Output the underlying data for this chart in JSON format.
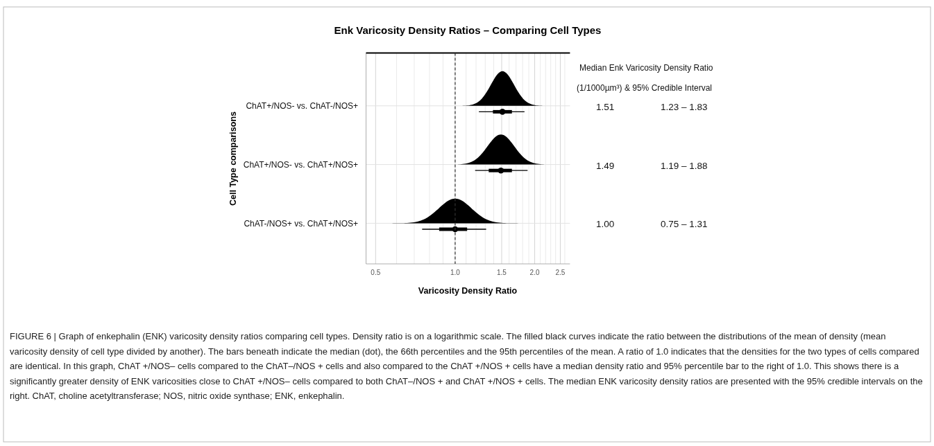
{
  "chart_data": {
    "type": "box",
    "orientation": "horizontal",
    "title": "Enk Varicosity Density Ratios – Comparing Cell Types",
    "xlabel": "Varicosity Density Ratio",
    "ylabel": "Cell Type comparisons",
    "categories": [
      "ChAT+/NOS- vs. ChAT-/NOS+",
      "ChAT+/NOS- vs. ChAT+/NOS+",
      "ChAT-/NOS+ vs. ChAT+/NOS+"
    ],
    "log": "x",
    "xlim": [
      0.46,
      2.72
    ],
    "xticks": [
      0.5,
      {
        "value": 0.6,
        "label": null
      },
      {
        "value": 0.7,
        "label": null
      },
      {
        "value": 0.8,
        "label": null
      },
      {
        "value": 0.9,
        "label": null
      },
      {
        "value": 1.0,
        "label": "1.0"
      },
      {
        "value": 1.1,
        "label": null
      },
      {
        "value": 1.2,
        "label": null
      },
      {
        "value": 1.3,
        "label": null
      },
      {
        "value": 1.4,
        "label": null
      },
      1.5,
      {
        "value": 1.6,
        "label": null
      },
      {
        "value": 1.7,
        "label": null
      },
      {
        "value": 1.8,
        "label": null
      },
      {
        "value": 1.9,
        "label": null
      },
      {
        "value": 2.0,
        "label": "2.0"
      },
      {
        "value": 2.1,
        "label": null
      },
      {
        "value": 2.2,
        "label": null
      },
      {
        "value": 2.3,
        "label": null
      },
      {
        "value": 2.4,
        "label": null
      },
      2.5,
      {
        "value": 2.6,
        "label": null
      }
    ],
    "grid": true,
    "boxes": [
      {
        "low": 1.23,
        "q1": 1.39,
        "median": 1.51,
        "q3": 1.64,
        "high": 1.83
      },
      {
        "low": 1.19,
        "q1": 1.34,
        "median": 1.49,
        "q3": 1.64,
        "high": 1.88
      },
      {
        "low": 0.75,
        "q1": 0.87,
        "median": 1.0,
        "q3": 1.11,
        "high": 1.31
      }
    ],
    "ref_lines": [
      {
        "axis": "x",
        "value": 1.0,
        "line_style": "dashed",
        "color": "#333333"
      }
    ],
    "annotations": [
      "Median Enk Varicosity Density Ratio",
      "(1/1000µm³) & 95% Credible Interval",
      "1.51",
      "1.23 – 1.83",
      "1.49",
      "1.19 – 1.88",
      "1.00",
      "0.75 – 1.31",
      "FIGURE 6 | Graph of enkephalin (ENK) varicosity density ratios comparing cell types. Density ratio is on a logarithmic scale. The filled black curves indicate the ratio between the distributions of the mean of density (mean varicosity density of cell type divided by another). The bars beneath indicate the median (dot), the 66th percentiles and the 95th percentiles of the mean. A ratio of 1.0 indicates that the densities for the two types of cells compared are identical. In this graph, ChAT +/NOS– cells compared to the ChAT–/NOS + cells and also compared to the ChAT +/NOS + cells have a median density ratio and 95% percentile bar to the right of 1.0. This shows there is a significantly greater density of ENK varicosities close to ChAT +/NOS– cells compared to both ChAT–/NOS + and ChAT +/NOS + cells. The median ENK varicosity density ratios are presented with the 95% credible intervals on the right. ChAT, choline acetyltransferase; NOS, nitric oxide synthase; ENK, enkephalin."
    ]
  }
}
